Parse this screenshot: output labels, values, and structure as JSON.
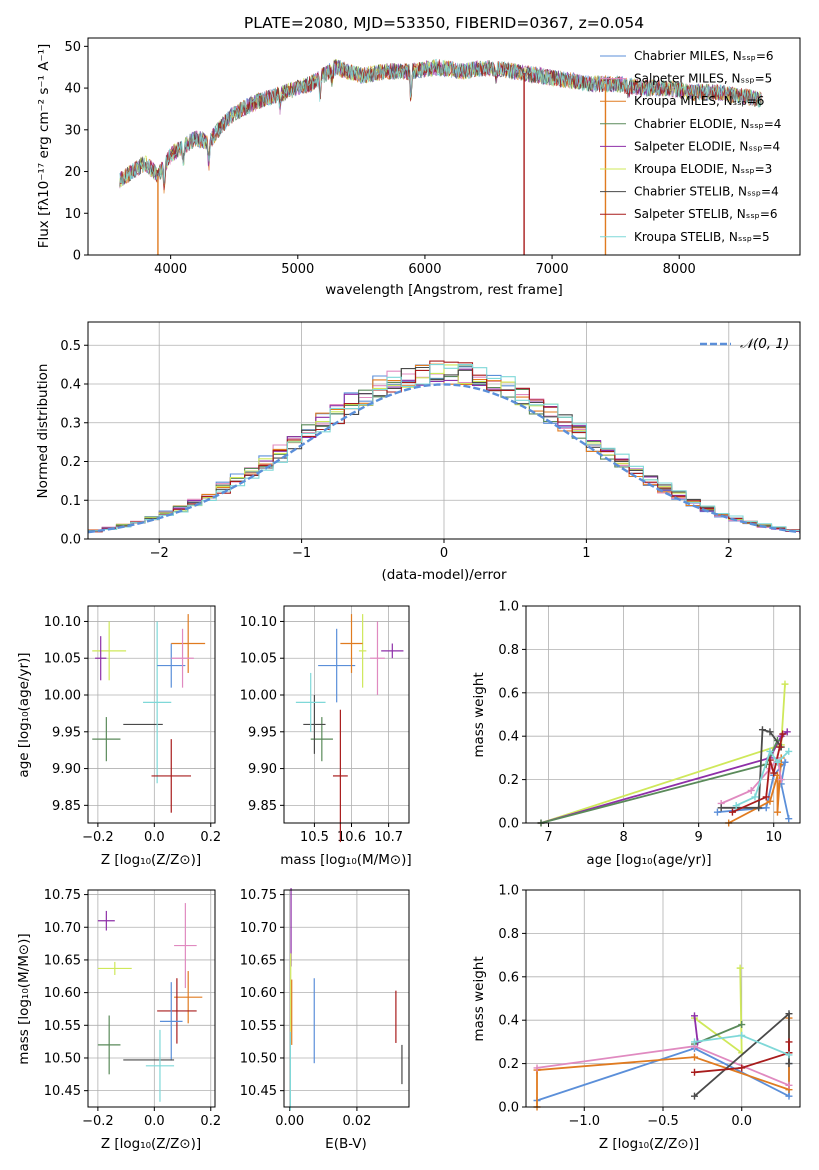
{
  "figure": {
    "title": "PLATE=2080, MJD=53350, FIBERID=0367, z=0.054"
  },
  "colors": {
    "Chabrier MILES": "#5b8fd9",
    "Salpeter MILES": "#e08ac0",
    "Kroupa MILES": "#e07b20",
    "Chabrier ELODIE": "#5a8a5a",
    "Salpeter ELODIE": "#8e2fa8",
    "Kroupa ELODIE": "#cfe85a",
    "Chabrier STELIB": "#4a4a4a",
    "Salpeter STELIB": "#a81c1c",
    "Kroupa STELIB": "#7fd8d8"
  },
  "panels": {
    "spectrum": {
      "xlabel": "wavelength [Angstrom, rest frame]",
      "ylabel": "Flux [fλ10⁻¹⁷ erg cm⁻² s⁻¹ A⁻¹]",
      "xticks": [
        "4000",
        "5000",
        "6000",
        "7000",
        "8000"
      ],
      "yticks": [
        "0",
        "10",
        "20",
        "30",
        "40",
        "50"
      ],
      "legend": [
        "Chabrier MILES, Nₛₛₚ=6",
        "Salpeter MILES, Nₛₛₚ=5",
        "Kroupa MILES, Nₛₛₚ=6",
        "Chabrier ELODIE, Nₛₛₚ=4",
        "Salpeter ELODIE, Nₛₛₚ=4",
        "Kroupa ELODIE, Nₛₛₚ=3",
        "Chabrier STELIB, Nₛₛₚ=4",
        "Salpeter STELIB, Nₛₛₚ=6",
        "Kroupa STELIB, Nₛₛₚ=5"
      ]
    },
    "residuals": {
      "xlabel": "(data-model)/error",
      "ylabel": "Normed distribution",
      "xticks": [
        "−2",
        "−1",
        "0",
        "1",
        "2"
      ],
      "yticks": [
        "0.0",
        "0.1",
        "0.2",
        "0.3",
        "0.4",
        "0.5"
      ],
      "legend": "𝒩(0, 1)"
    },
    "age_vs_Z": {
      "xlabel": "Z [log₁₀(Z/Z⊙)]",
      "ylabel": "age  [log₁₀(age/yr)]",
      "xticks": [
        "−0.2",
        "0.0",
        "0.2"
      ],
      "yticks": [
        "9.85",
        "9.90",
        "9.95",
        "10.00",
        "10.05",
        "10.10"
      ]
    },
    "age_vs_mass": {
      "xlabel": "mass [log₁₀(M/M⊙)]",
      "xticks": [
        "10.5",
        "10.6",
        "10.7"
      ],
      "yticks": [
        "9.85",
        "9.90",
        "9.95",
        "10.00",
        "10.05",
        "10.10"
      ]
    },
    "weight_vs_age": {
      "xlabel": "age  [log₁₀(age/yr)]",
      "ylabel": "mass weight",
      "xticks": [
        "7",
        "8",
        "9",
        "10"
      ],
      "yticks": [
        "0.0",
        "0.2",
        "0.4",
        "0.6",
        "0.8",
        "1.0"
      ]
    },
    "mass_vs_Z": {
      "xlabel": "Z [log₁₀(Z/Z⊙)]",
      "ylabel": "mass [log₁₀(M/M⊙)]",
      "xticks": [
        "−0.2",
        "0.0",
        "0.2"
      ],
      "yticks": [
        "10.45",
        "10.50",
        "10.55",
        "10.60",
        "10.65",
        "10.70",
        "10.75"
      ]
    },
    "mass_vs_ebv": {
      "xlabel": "E(B-V)",
      "xticks": [
        "0.00",
        "0.02"
      ],
      "yticks": [
        "10.45",
        "10.50",
        "10.55",
        "10.60",
        "10.65",
        "10.70",
        "10.75"
      ]
    },
    "weight_vs_Z": {
      "xlabel": "Z [log₁₀(Z/Z⊙)]",
      "ylabel": "mass weight",
      "xticks": [
        "−1.0",
        "−0.5",
        "0.0"
      ],
      "yticks": [
        "0.0",
        "0.2",
        "0.4",
        "0.6",
        "0.8",
        "1.0"
      ]
    }
  },
  "chart_data": [
    {
      "type": "line",
      "panel": "spectrum",
      "title": "PLATE=2080, MJD=53350, FIBERID=0367, z=0.054",
      "xlabel": "wavelength [Angstrom, rest frame]",
      "xlim": [
        3350,
        8950
      ],
      "ylim": [
        0,
        52
      ],
      "continuum": {
        "x": [
          3600,
          3700,
          3800,
          3900,
          4000,
          4100,
          4200,
          4300,
          4400,
          4500,
          4700,
          4900,
          5100,
          5300,
          5500,
          5700,
          5900,
          6100,
          6300,
          6500,
          6700,
          6900,
          7100,
          7300,
          7500,
          7700,
          7900,
          8100,
          8300,
          8500,
          8700
        ],
        "y": [
          18,
          20,
          22,
          19,
          24,
          26,
          28,
          27,
          31,
          34,
          37,
          39,
          41,
          45,
          43,
          44,
          44,
          45,
          44,
          45,
          44,
          43,
          42,
          41,
          41,
          40,
          40,
          39,
          39,
          38,
          37
        ]
      },
      "dropouts": [
        {
          "series": "Kroupa MILES",
          "x": 3900
        },
        {
          "series": "Salpeter STELIB",
          "x": 6780
        },
        {
          "series": "Kroupa MILES",
          "x": 7420
        }
      ]
    },
    {
      "type": "line",
      "panel": "residuals",
      "xlabel": "(data-model)/error",
      "ylabel": "Normed distribution",
      "xlim": [
        -2.5,
        2.5
      ],
      "ylim": [
        0,
        0.56
      ],
      "series": [
        {
          "name": "𝒩(0, 1)",
          "function": "normal_pdf",
          "mean": 0,
          "sd": 1
        }
      ],
      "histograms": {
        "bin_width": 0.1,
        "count": 9,
        "envelope": "normal_pdf_with_noise"
      }
    },
    {
      "type": "scatter",
      "panel": "age_vs_Z",
      "points": [
        {
          "series": "Kroupa ELODIE",
          "x": -0.16,
          "y": 10.06,
          "xerr": 0.06,
          "yerr": 0.04
        },
        {
          "series": "Salpeter ELODIE",
          "x": -0.19,
          "y": 10.05,
          "xerr": 0.02,
          "yerr": 0.03
        },
        {
          "series": "Chabrier ELODIE",
          "x": -0.17,
          "y": 9.94,
          "xerr": 0.05,
          "yerr": 0.03
        },
        {
          "series": "Chabrier STELIB",
          "x": -0.04,
          "y": 9.96,
          "xerr": 0.07,
          "yerr": 0.0
        },
        {
          "series": "Kroupa STELIB",
          "x": 0.01,
          "y": 9.99,
          "xerr": 0.05,
          "yerr": 0.11
        },
        {
          "series": "Chabrier MILES",
          "x": 0.06,
          "y": 10.04,
          "xerr": 0.05,
          "yerr": 0.03
        },
        {
          "series": "Kroupa MILES",
          "x": 0.12,
          "y": 10.07,
          "xerr": 0.06,
          "yerr": 0.04
        },
        {
          "series": "Salpeter MILES",
          "x": 0.1,
          "y": 10.05,
          "xerr": 0.04,
          "yerr": 0.04
        },
        {
          "series": "Salpeter STELIB",
          "x": 0.06,
          "y": 9.89,
          "xerr": 0.07,
          "yerr": 0.05
        }
      ]
    },
    {
      "type": "scatter",
      "panel": "age_vs_mass",
      "points": [
        {
          "series": "Kroupa ELODIE",
          "x": 10.63,
          "y": 10.06,
          "xerr": 0.01,
          "yerr": 0.05
        },
        {
          "series": "Salpeter ELODIE",
          "x": 10.71,
          "y": 10.06,
          "xerr": 0.03,
          "yerr": 0.01
        },
        {
          "series": "Chabrier ELODIE",
          "x": 10.52,
          "y": 9.94,
          "xerr": 0.03,
          "yerr": 0.03
        },
        {
          "series": "Chabrier STELIB",
          "x": 10.5,
          "y": 9.96,
          "xerr": 0.03,
          "yerr": 0.04
        },
        {
          "series": "Kroupa STELIB",
          "x": 10.49,
          "y": 9.99,
          "xerr": 0.04,
          "yerr": 0.04
        },
        {
          "series": "Chabrier MILES",
          "x": 10.56,
          "y": 10.04,
          "xerr": 0.05,
          "yerr": 0.05
        },
        {
          "series": "Kroupa MILES",
          "x": 10.6,
          "y": 10.07,
          "xerr": 0.03,
          "yerr": 0.04
        },
        {
          "series": "Salpeter MILES",
          "x": 10.67,
          "y": 10.05,
          "xerr": 0.02,
          "yerr": 0.05
        },
        {
          "series": "Salpeter STELIB",
          "x": 10.57,
          "y": 9.89,
          "xerr": 0.02,
          "yerr": 0.09
        }
      ]
    },
    {
      "type": "line",
      "panel": "weight_vs_age",
      "xlim": [
        6.7,
        10.35
      ],
      "ylim": [
        0,
        1
      ],
      "series": [
        {
          "color": "Kroupa ELODIE",
          "x": [
            6.9,
            10.1,
            10.15
          ],
          "y": [
            0.0,
            0.36,
            0.64
          ]
        },
        {
          "color": "Salpeter ELODIE",
          "x": [
            6.9,
            9.95,
            10.1,
            10.18
          ],
          "y": [
            0.0,
            0.3,
            0.4,
            0.42
          ]
        },
        {
          "color": "Chabrier ELODIE",
          "x": [
            6.9,
            9.9,
            10.05
          ],
          "y": [
            0.0,
            0.27,
            0.38
          ]
        },
        {
          "color": "Chabrier MILES",
          "x": [
            9.25,
            9.9,
            10.0,
            10.15,
            10.1,
            10.2
          ],
          "y": [
            0.05,
            0.07,
            0.22,
            0.28,
            0.18,
            0.02
          ]
        },
        {
          "color": "Kroupa MILES",
          "x": [
            9.4,
            9.95,
            10.05,
            10.05,
            10.1,
            10.08
          ],
          "y": [
            0.0,
            0.1,
            0.22,
            0.05,
            0.3,
            0.27
          ]
        },
        {
          "color": "Salpeter MILES",
          "x": [
            9.3,
            9.7,
            9.95,
            10.05,
            10.1
          ],
          "y": [
            0.09,
            0.15,
            0.25,
            0.3,
            0.2
          ]
        },
        {
          "color": "Chabrier STELIB",
          "x": [
            9.3,
            9.8,
            9.85,
            9.95,
            10.1
          ],
          "y": [
            0.07,
            0.07,
            0.43,
            0.42,
            0.35
          ]
        },
        {
          "color": "Salpeter STELIB",
          "x": [
            9.45,
            9.9,
            9.95,
            10.0,
            10.08,
            10.12
          ],
          "y": [
            0.05,
            0.12,
            0.29,
            0.23,
            0.35,
            0.41
          ]
        },
        {
          "color": "Kroupa STELIB",
          "x": [
            9.5,
            9.75,
            9.95,
            10.05,
            10.2
          ],
          "y": [
            0.08,
            0.12,
            0.33,
            0.28,
            0.33
          ]
        }
      ]
    },
    {
      "type": "scatter",
      "panel": "mass_vs_Z",
      "points": [
        {
          "series": "Salpeter ELODIE",
          "x": -0.17,
          "y": 10.71,
          "xerr": 0.03,
          "yerr": 0.015
        },
        {
          "series": "Kroupa ELODIE",
          "x": -0.14,
          "y": 10.637,
          "xerr": 0.06,
          "yerr": 0.01
        },
        {
          "series": "Salpeter MILES",
          "x": 0.11,
          "y": 10.672,
          "xerr": 0.04,
          "yerr": 0.065
        },
        {
          "series": "Kroupa MILES",
          "x": 0.12,
          "y": 10.593,
          "xerr": 0.05,
          "yerr": 0.04
        },
        {
          "series": "Salpeter STELIB",
          "x": 0.08,
          "y": 10.572,
          "xerr": 0.07,
          "yerr": 0.05
        },
        {
          "series": "Chabrier MILES",
          "x": 0.06,
          "y": 10.556,
          "xerr": 0.04,
          "yerr": 0.06
        },
        {
          "series": "Chabrier ELODIE",
          "x": -0.16,
          "y": 10.52,
          "xerr": 0.04,
          "yerr": 0.045
        },
        {
          "series": "Chabrier STELIB",
          "x": -0.02,
          "y": 10.497,
          "xerr": 0.09,
          "yerr": 0.0
        },
        {
          "series": "Kroupa STELIB",
          "x": 0.02,
          "y": 10.488,
          "xerr": 0.05,
          "yerr": 0.055
        }
      ]
    },
    {
      "type": "scatter",
      "panel": "mass_vs_ebv",
      "points": [
        {
          "series": "Salpeter ELODIE",
          "x": 0.0004,
          "y": 10.7,
          "yerr": 0.06
        },
        {
          "series": "Kroupa ELODIE",
          "x": 0.0003,
          "y": 10.6,
          "yerr": 0.06
        },
        {
          "series": "Kroupa MILES",
          "x": 0.0006,
          "y": 10.57,
          "yerr": 0.05
        },
        {
          "series": "Kroupa STELIB",
          "x": 0.0002,
          "y": 10.48,
          "yerr": 0.06
        },
        {
          "series": "Chabrier MILES",
          "x": 0.0073,
          "y": 10.557,
          "yerr": 0.065
        },
        {
          "series": "Salpeter STELIB",
          "x": 0.0316,
          "y": 10.563,
          "yerr": 0.04
        },
        {
          "series": "Chabrier STELIB",
          "x": 0.0334,
          "y": 10.49,
          "yerr": 0.03
        }
      ]
    },
    {
      "type": "line",
      "panel": "weight_vs_Z",
      "xlim": [
        -1.37,
        0.37
      ],
      "ylim": [
        0,
        1
      ],
      "series": [
        {
          "color": "Kroupa ELODIE",
          "x": [
            -0.3,
            0.0,
            -0.01
          ],
          "y": [
            0.41,
            0.25,
            0.64
          ]
        },
        {
          "color": "Chabrier ELODIE",
          "x": [
            -0.3,
            0.0
          ],
          "y": [
            0.29,
            0.38
          ]
        },
        {
          "color": "Salpeter ELODIE",
          "x": [
            -0.3,
            -0.28
          ],
          "y": [
            0.42,
            0.3
          ]
        },
        {
          "color": "Chabrier MILES",
          "x": [
            -1.3,
            -0.3,
            0.3,
            0.3
          ],
          "y": [
            0.03,
            0.27,
            0.05,
            0.2
          ]
        },
        {
          "color": "Kroupa MILES",
          "x": [
            -1.3,
            -1.3,
            -0.3,
            0.3,
            0.3
          ],
          "y": [
            0.0,
            0.17,
            0.23,
            0.08,
            0.41
          ]
        },
        {
          "color": "Salpeter MILES",
          "x": [
            -1.3,
            -0.3,
            0.3
          ],
          "y": [
            0.18,
            0.28,
            0.1
          ]
        },
        {
          "color": "Chabrier STELIB",
          "x": [
            -0.3,
            0.3,
            0.3
          ],
          "y": [
            0.05,
            0.43,
            0.2
          ]
        },
        {
          "color": "Salpeter STELIB",
          "x": [
            -0.3,
            0.0,
            0.3,
            0.3
          ],
          "y": [
            0.16,
            0.18,
            0.25,
            0.3
          ]
        },
        {
          "color": "Kroupa STELIB",
          "x": [
            -0.3,
            0.0,
            0.3
          ],
          "y": [
            0.3,
            0.33,
            0.24
          ]
        }
      ]
    }
  ]
}
